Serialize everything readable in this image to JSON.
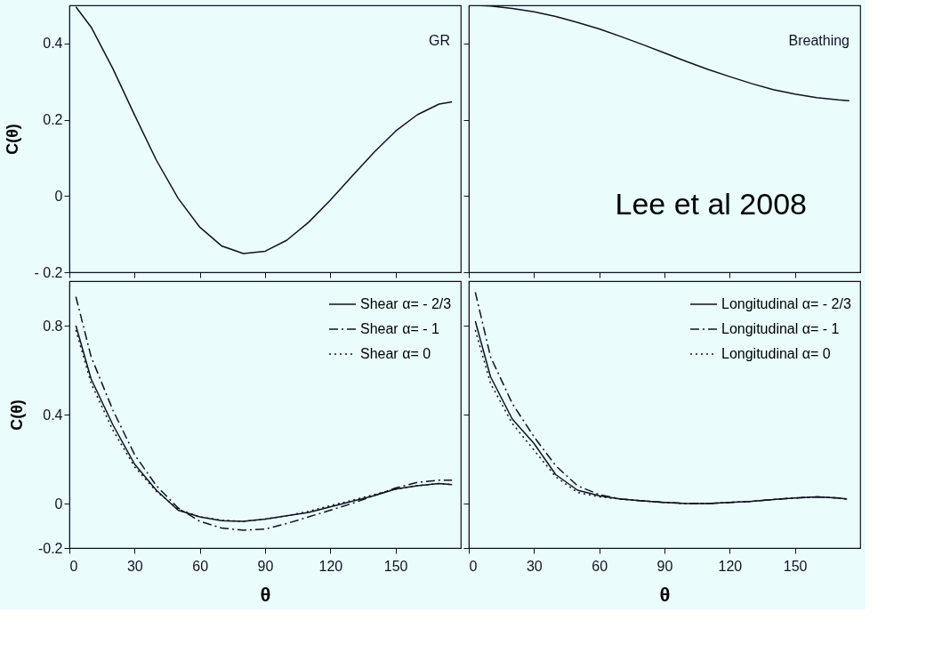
{
  "chart_data": [
    {
      "type": "line",
      "ylabel": "C(θ)",
      "xlim": [
        0,
        180
      ],
      "xticks": [
        0,
        30,
        60,
        90,
        120,
        150
      ],
      "ylim": [
        -0.2,
        0.5
      ],
      "yticks": [
        0.4,
        0.2,
        0,
        {
          "value": -0.2,
          "label": "- 0.2"
        }
      ],
      "tick_labels": "y",
      "x": [
        3,
        10,
        20,
        30,
        40,
        50,
        60,
        70,
        80,
        90,
        100,
        110,
        120,
        130,
        140,
        150,
        160,
        170,
        176
      ],
      "series": [
        {
          "name": "GR",
          "color": "#111122",
          "line_style": "solid",
          "values": [
            0.496,
            0.443,
            0.334,
            0.212,
            0.094,
            -0.006,
            -0.082,
            -0.131,
            -0.151,
            -0.145,
            -0.116,
            -0.069,
            -0.011,
            0.052,
            0.114,
            0.17,
            0.213,
            0.241,
            0.247
          ]
        }
      ]
    },
    {
      "type": "line",
      "xlim": [
        0,
        180
      ],
      "xticks": [
        0,
        30,
        60,
        90,
        120,
        150
      ],
      "ylim": [
        -0.2,
        0.5
      ],
      "yticks": [
        0.4,
        0.2,
        0,
        -0.2
      ],
      "tick_labels": false,
      "annotations": [
        "Lee et al 2008"
      ],
      "x": [
        3,
        10,
        20,
        30,
        40,
        50,
        60,
        70,
        80,
        90,
        100,
        110,
        120,
        130,
        140,
        150,
        160,
        170,
        175
      ],
      "series": [
        {
          "name": "Breathing",
          "color": "#111122",
          "line_style": "solid",
          "values": [
            0.5,
            0.498,
            0.492,
            0.483,
            0.471,
            0.455,
            0.438,
            0.418,
            0.397,
            0.375,
            0.353,
            0.332,
            0.313,
            0.295,
            0.279,
            0.267,
            0.258,
            0.252,
            0.25
          ]
        }
      ]
    },
    {
      "type": "line",
      "xlabel": "θ",
      "ylabel": "C(θ)",
      "xlim": [
        0,
        180
      ],
      "xticks": [
        0,
        30,
        60,
        90,
        120,
        150
      ],
      "ylim": [
        -0.2,
        1.0
      ],
      "yticks": [
        0.8,
        0.4,
        0,
        -0.2
      ],
      "legend": "top right",
      "x": [
        3,
        10,
        20,
        30,
        40,
        50,
        60,
        70,
        80,
        90,
        100,
        110,
        120,
        130,
        140,
        150,
        160,
        170,
        176
      ],
      "series": [
        {
          "name": "Shear α= - 2/3",
          "color": "#111122",
          "line_style": "solid",
          "values": [
            0.8,
            0.56,
            0.354,
            0.177,
            0.06,
            -0.03,
            -0.06,
            -0.077,
            -0.08,
            -0.07,
            -0.055,
            -0.04,
            -0.015,
            0.01,
            0.035,
            0.065,
            0.08,
            0.09,
            0.085
          ]
        },
        {
          "name": "Shear α= - 1",
          "color": "#111122",
          "line_style": "dashdot",
          "values": [
            0.93,
            0.66,
            0.42,
            0.22,
            0.08,
            -0.02,
            -0.08,
            -0.11,
            -0.12,
            -0.115,
            -0.09,
            -0.06,
            -0.03,
            0.0,
            0.035,
            0.07,
            0.095,
            0.105,
            0.105
          ]
        },
        {
          "name": "Shear α= 0",
          "color": "#111122",
          "line_style": "dotted",
          "values": [
            0.78,
            0.54,
            0.33,
            0.165,
            0.055,
            -0.025,
            -0.06,
            -0.075,
            -0.08,
            -0.07,
            -0.055,
            -0.035,
            -0.01,
            0.015,
            0.04,
            0.065,
            0.08,
            0.09,
            0.085
          ]
        }
      ]
    },
    {
      "type": "line",
      "xlabel": "θ",
      "xlim": [
        0,
        180
      ],
      "xticks": [
        0,
        30,
        60,
        90,
        120,
        150
      ],
      "ylim": [
        -0.2,
        1.0
      ],
      "yticks": [
        0.8,
        0.4,
        0,
        -0.2
      ],
      "tick_labels": "x",
      "legend": "top right",
      "x": [
        3,
        10,
        20,
        30,
        40,
        50,
        60,
        70,
        80,
        90,
        100,
        110,
        120,
        130,
        140,
        150,
        160,
        170,
        174
      ],
      "series": [
        {
          "name": "Longitudinal α= - 2/3",
          "color": "#111122",
          "line_style": "solid",
          "values": [
            0.82,
            0.57,
            0.38,
            0.27,
            0.13,
            0.06,
            0.035,
            0.02,
            0.012,
            0.005,
            0.0,
            0.0,
            0.005,
            0.01,
            0.018,
            0.025,
            0.03,
            0.025,
            0.02
          ]
        },
        {
          "name": "Longitudinal α= - 1",
          "color": "#111122",
          "line_style": "dashdot",
          "values": [
            0.95,
            0.66,
            0.45,
            0.3,
            0.17,
            0.08,
            0.04,
            0.02,
            0.012,
            0.005,
            0.0,
            0.0,
            0.005,
            0.01,
            0.018,
            0.025,
            0.03,
            0.025,
            0.02
          ]
        },
        {
          "name": "Longitudinal α= 0",
          "color": "#111122",
          "line_style": "dotted",
          "values": [
            0.78,
            0.54,
            0.36,
            0.24,
            0.12,
            0.05,
            0.03,
            0.02,
            0.012,
            0.005,
            0.0,
            0.0,
            0.005,
            0.01,
            0.018,
            0.025,
            0.03,
            0.025,
            0.02
          ]
        }
      ]
    }
  ]
}
